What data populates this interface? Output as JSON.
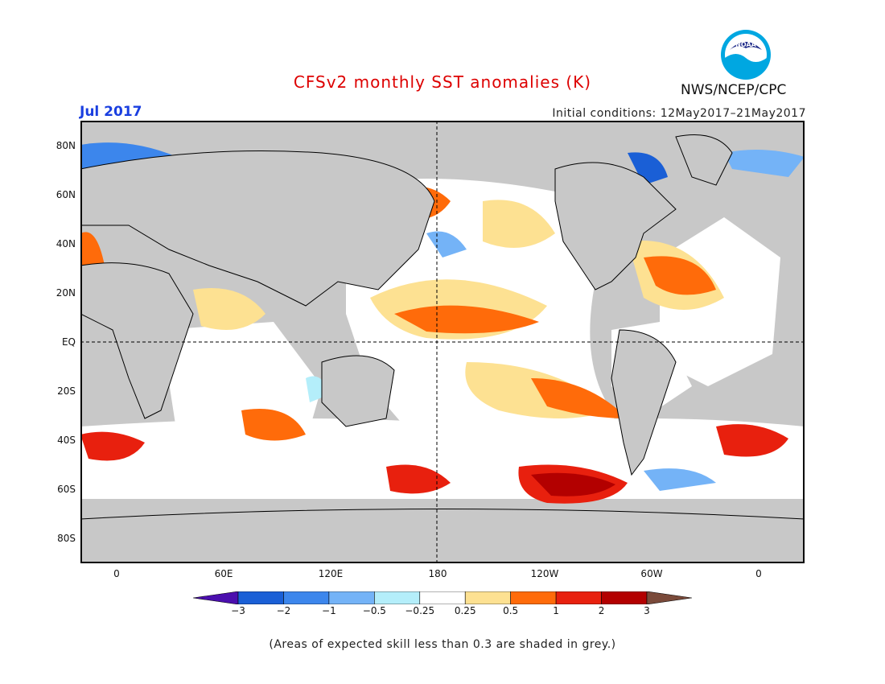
{
  "header": {
    "title": "CFSv2 monthly SST anomalies (K)",
    "title_color": "#dd0000",
    "agency": "NWS/NCEP/CPC",
    "logo_text": "NOAA",
    "month": "Jul 2017",
    "month_color": "#1a3fe0",
    "initial_conditions": "Initial conditions: 12May2017–21May2017"
  },
  "map": {
    "lat_labels": [
      "80N",
      "60N",
      "40N",
      "20N",
      "EQ",
      "20S",
      "40S",
      "60S",
      "80S"
    ],
    "lon_labels": [
      "0",
      "60E",
      "120E",
      "180",
      "120W",
      "60W",
      "0"
    ],
    "land_color": "#c8c8c8",
    "low_skill_color": "#c8c8c8"
  },
  "colorbar": {
    "labels": [
      "−3",
      "−2",
      "−1",
      "−0.5",
      "−0.25",
      "0.25",
      "0.5",
      "1",
      "2",
      "3"
    ],
    "colors": [
      "#4b0fae",
      "#1a5fd6",
      "#3c86ec",
      "#74b3f7",
      "#b4eefa",
      "#ffffff",
      "#fde192",
      "#ff6b0a",
      "#e8200e",
      "#b30000",
      "#7a4a3a"
    ]
  },
  "footnote": "(Areas of expected skill less than 0.3 are shaded in grey.)"
}
